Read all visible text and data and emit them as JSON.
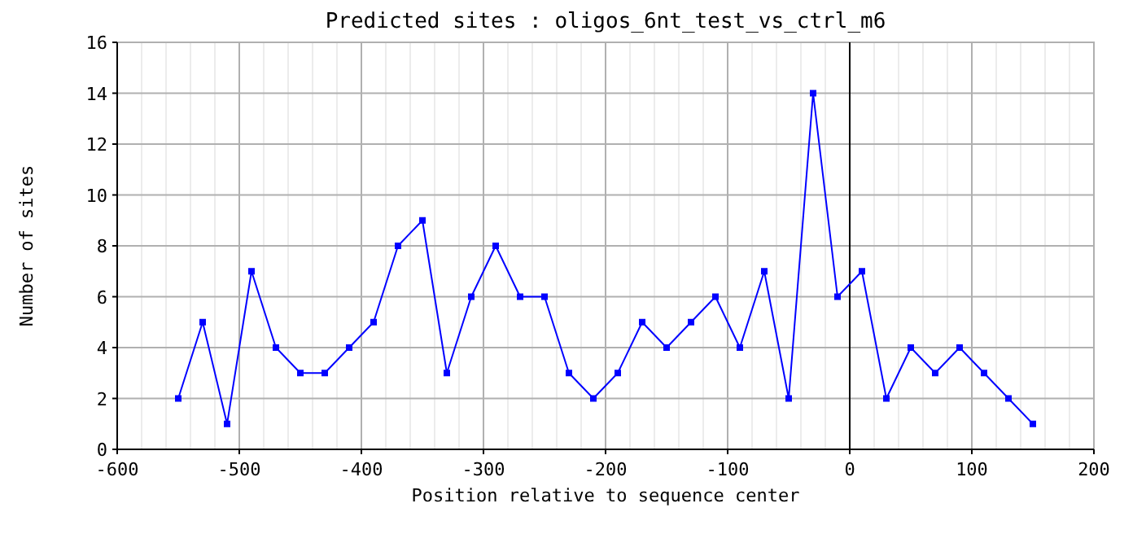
{
  "chart_data": {
    "type": "line",
    "title": "Predicted sites : oligos_6nt_test_vs_ctrl_m6",
    "xlabel": "Position relative to sequence center",
    "ylabel": "Number of sites",
    "x": [
      -550,
      -530,
      -510,
      -490,
      -470,
      -450,
      -430,
      -410,
      -390,
      -370,
      -350,
      -330,
      -310,
      -290,
      -270,
      -250,
      -230,
      -210,
      -190,
      -170,
      -150,
      -130,
      -110,
      -90,
      -70,
      -50,
      -30,
      -10,
      10,
      30,
      50,
      70,
      90,
      110,
      130,
      150
    ],
    "series": [
      {
        "color": "#0000ff",
        "values": [
          2,
          5,
          1,
          7,
          4,
          3,
          3,
          4,
          5,
          8,
          9,
          3,
          6,
          8,
          6,
          6,
          3,
          2,
          3,
          5,
          4,
          5,
          6,
          4,
          7,
          2,
          14,
          6,
          7,
          2,
          4,
          3,
          4,
          3,
          2,
          1
        ]
      }
    ],
    "xlim": [
      -600,
      200
    ],
    "xticks": [
      -600,
      -500,
      -400,
      -300,
      -200,
      -100,
      0,
      100,
      200
    ],
    "ylim": [
      0,
      16
    ],
    "yticks": [
      0,
      2,
      4,
      6,
      8,
      10,
      12,
      14,
      16
    ],
    "ref_lines": [
      {
        "axis": "x",
        "value": 0,
        "color": "#000000"
      }
    ],
    "grid": true,
    "marker": "square",
    "line_style": "solid"
  }
}
